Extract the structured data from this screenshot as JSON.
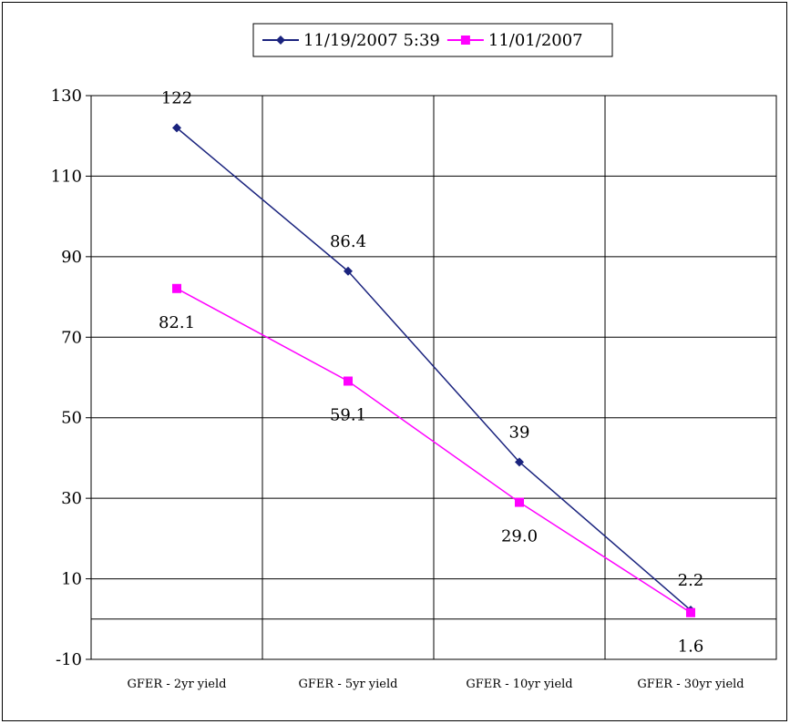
{
  "chart_data": {
    "type": "line",
    "categories": [
      "GFER - 2yr yield",
      "GFER - 5yr yield",
      "GFER - 10yr yield",
      "GFER - 30yr yield"
    ],
    "series": [
      {
        "name": "11/19/2007 5:39",
        "values": [
          122,
          86.4,
          39,
          2.2
        ],
        "labels": [
          "122",
          "86.4",
          "39",
          "2.2"
        ],
        "color": "#1a237e",
        "marker": "diamond"
      },
      {
        "name": "11/01/2007",
        "values": [
          82.1,
          59.1,
          29.0,
          1.6
        ],
        "labels": [
          "82.1",
          "59.1",
          "29.0",
          "1.6"
        ],
        "color": "#ff00ff",
        "marker": "square"
      }
    ],
    "yticks": [
      -10,
      10,
      30,
      50,
      70,
      90,
      110,
      130
    ],
    "ylim": [
      -10,
      130
    ],
    "grid": true,
    "legend_position": "top"
  }
}
